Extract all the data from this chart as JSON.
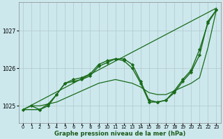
{
  "xlabel": "Graphe pression niveau de la mer (hPa)",
  "background_color": "#cce8ed",
  "grid_color": "#b0c8cc",
  "line_color": "#1a6b1a",
  "xlim": [
    -0.5,
    23.5
  ],
  "ylim": [
    1024.55,
    1027.75
  ],
  "yticks": [
    1025,
    1026,
    1027
  ],
  "xticks": [
    0,
    1,
    2,
    3,
    4,
    5,
    6,
    7,
    8,
    9,
    10,
    11,
    12,
    13,
    14,
    15,
    16,
    17,
    18,
    19,
    20,
    21,
    22,
    23
  ],
  "series": [
    {
      "x": [
        0,
        23
      ],
      "y": [
        1024.9,
        1027.6
      ],
      "marker": null,
      "linewidth": 0.9,
      "linestyle": "-"
    },
    {
      "x": [
        0,
        1,
        2,
        3,
        4,
        5,
        6,
        7,
        8,
        9,
        10,
        11,
        12,
        13,
        14,
        15,
        16,
        17,
        18,
        19,
        20,
        21,
        22,
        23
      ],
      "y": [
        1024.9,
        1025.0,
        1025.0,
        1025.05,
        1025.1,
        1025.2,
        1025.3,
        1025.4,
        1025.5,
        1025.6,
        1025.65,
        1025.7,
        1025.65,
        1025.6,
        1025.5,
        1025.35,
        1025.3,
        1025.3,
        1025.4,
        1025.5,
        1025.6,
        1025.75,
        1026.55,
        1027.55
      ],
      "marker": null,
      "linewidth": 0.9,
      "linestyle": "-"
    },
    {
      "x": [
        1,
        2,
        3,
        4,
        5,
        6,
        7,
        8,
        9,
        10,
        11,
        12,
        13,
        14,
        15,
        16,
        17,
        18,
        19,
        20,
        21,
        22,
        23
      ],
      "y": [
        1025.0,
        1024.9,
        1025.05,
        1025.3,
        1025.6,
        1025.7,
        1025.75,
        1025.85,
        1026.1,
        1026.2,
        1026.25,
        1026.25,
        1026.1,
        1025.65,
        1025.15,
        1025.1,
        1025.15,
        1025.35,
        1025.65,
        1025.9,
        1026.35,
        1027.25,
        1027.55
      ],
      "marker": "D",
      "markersize": 2.2,
      "linewidth": 1.0,
      "linestyle": "-"
    },
    {
      "x": [
        0,
        2,
        3,
        4,
        5,
        6,
        7,
        8,
        9,
        10,
        11,
        12,
        13,
        14,
        15,
        16,
        17,
        18,
        19,
        20,
        21,
        22,
        23
      ],
      "y": [
        1024.9,
        1024.9,
        1025.0,
        1025.3,
        1025.6,
        1025.65,
        1025.7,
        1025.8,
        1026.05,
        1026.15,
        1026.25,
        1026.2,
        1026.0,
        1025.6,
        1025.1,
        1025.1,
        1025.15,
        1025.4,
        1025.7,
        1025.95,
        1026.5,
        1027.2,
        1027.55
      ],
      "marker": "D",
      "markersize": 2.2,
      "linewidth": 1.0,
      "linestyle": "-"
    }
  ]
}
